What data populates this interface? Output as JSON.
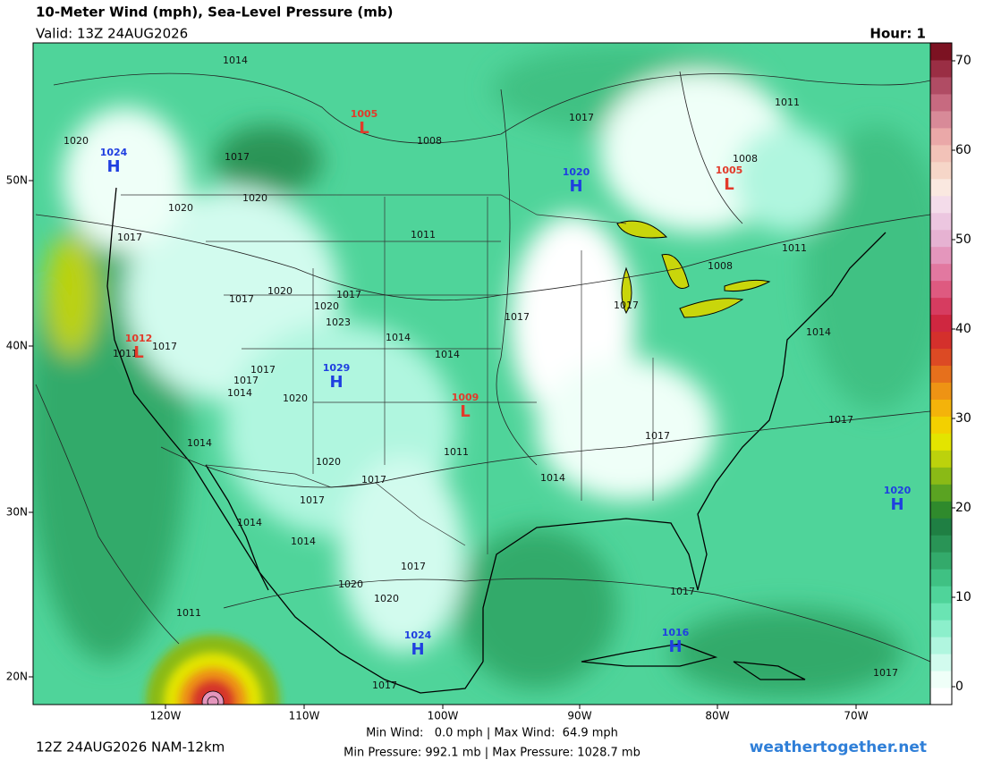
{
  "header": {
    "title": "10-Meter Wind (mph), Sea-Level Pressure (mb)",
    "valid": "Valid: 13Z 24AUG2026",
    "hour": "Hour: 1"
  },
  "map": {
    "lon_labels": [
      "120W",
      "110W",
      "100W",
      "90W",
      "80W",
      "70W"
    ],
    "lat_labels": [
      "50N",
      "40N",
      "30N",
      "20N"
    ],
    "isobar_labels": [
      "1014",
      "1008",
      "1017",
      "1011",
      "1020",
      "1017",
      "1008",
      "1020",
      "1020",
      "1017",
      "1011",
      "1011",
      "1008",
      "1017",
      "1020",
      "1017",
      "1020",
      "1023",
      "1017",
      "1017",
      "1014",
      "1011",
      "1017",
      "1014",
      "1014",
      "1017",
      "1017",
      "1014",
      "1020",
      "1017",
      "1017",
      "1014",
      "1011",
      "1020",
      "1017",
      "1014",
      "1017",
      "1014",
      "1014",
      "1017",
      "1020",
      "1020",
      "1017",
      "1011",
      "1017",
      "1017"
    ],
    "centers": [
      {
        "type": "L",
        "pressure": "1005"
      },
      {
        "type": "H",
        "pressure": "1024"
      },
      {
        "type": "H",
        "pressure": "1020"
      },
      {
        "type": "L",
        "pressure": "1005"
      },
      {
        "type": "L",
        "pressure": "1012"
      },
      {
        "type": "H",
        "pressure": "1029"
      },
      {
        "type": "L",
        "pressure": "1009"
      },
      {
        "type": "H",
        "pressure": "1020"
      },
      {
        "type": "H",
        "pressure": "1024"
      },
      {
        "type": "H",
        "pressure": "1016"
      }
    ]
  },
  "colorbar": {
    "lim": [
      -2,
      72
    ],
    "ticks": [
      0,
      10,
      20,
      30,
      40,
      50,
      60,
      70
    ],
    "colors": [
      "#ffffff",
      "#effff8",
      "#d2fbee",
      "#b0f6df",
      "#8cefcb",
      "#6ae4b3",
      "#4fd49a",
      "#3fc183",
      "#33aa6b",
      "#299456",
      "#1f7f43",
      "#2f8a2c",
      "#5aa322",
      "#8aba16",
      "#bcd20c",
      "#e3e400",
      "#f3d000",
      "#f4b30a",
      "#ee9314",
      "#e6701c",
      "#dc4a24",
      "#d4302c",
      "#cf2740",
      "#d63c60",
      "#de5a80",
      "#e278a0",
      "#e496bc",
      "#e6b2d2",
      "#ecc6e0",
      "#f4dcea",
      "#fae8e0",
      "#f6d6c8",
      "#f2c2b8",
      "#eaa8a8",
      "#d88a98",
      "#c76a80",
      "#b04c64",
      "#9a2e44",
      "#7c1222"
    ]
  },
  "footer": {
    "run": "12Z 24AUG2026 NAM-12km",
    "wind": "Min Wind:   0.0 mph | Max Wind:  64.9 mph",
    "pressure": "Min Pressure: 992.1 mb | Max Pressure: 1028.7 mb",
    "site": "weathertogether.net"
  }
}
